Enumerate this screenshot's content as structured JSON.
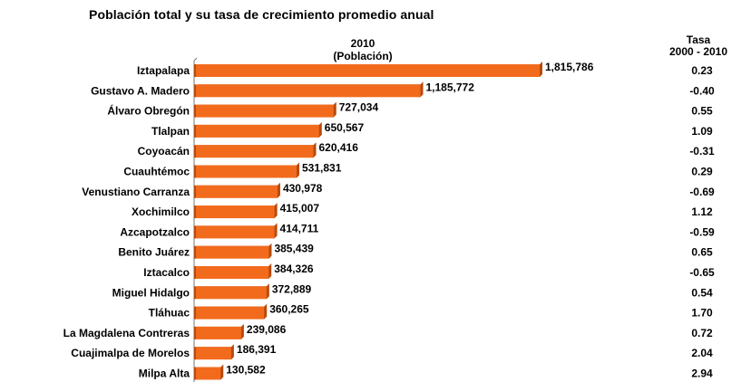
{
  "chart_data": {
    "type": "bar",
    "orientation": "horizontal",
    "title": "Población total y su tasa de crecimiento promedio anual",
    "series_header": {
      "line1": "2010",
      "line2": "(Población)"
    },
    "rate_header": {
      "line1": "Tasa",
      "line2": "2000 - 2010"
    },
    "bar_color": "#f26b1d",
    "bar_shadow_color": "#b84a0c",
    "categories": [
      "Iztapalapa",
      "Gustavo A. Madero",
      "Álvaro Obregón",
      "Tlalpan",
      "Coyoacán",
      "Cuauhtémoc",
      "Venustiano Carranza",
      "Xochimilco",
      "Azcapotzalco",
      "Benito Juárez",
      "Iztacalco",
      "Miguel Hidalgo",
      "Tláhuac",
      "La Magdalena Contreras",
      "Cuajimalpa de Morelos",
      "Milpa Alta"
    ],
    "values": [
      1815786,
      1185772,
      727034,
      650567,
      620416,
      531831,
      430978,
      415007,
      414711,
      385439,
      384326,
      372889,
      360265,
      239086,
      186391,
      130582
    ],
    "value_labels": [
      "1,815,786",
      "1,185,772",
      "727,034",
      "650,567",
      "620,416",
      "531,831",
      "430,978",
      "415,007",
      "414,711",
      "385,439",
      "384,326",
      "372,889",
      "360,265",
      "239,086",
      "186,391",
      "130,582"
    ],
    "rates": [
      "0.23",
      "-0.40",
      "0.55",
      "1.09",
      "-0.31",
      "0.29",
      "-0.69",
      "1.12",
      "-0.59",
      "0.65",
      "-0.65",
      "0.54",
      "1.70",
      "0.72",
      "2.04",
      "2.94"
    ],
    "xlim": [
      0,
      1815786
    ],
    "grid": false,
    "legend": "none"
  }
}
